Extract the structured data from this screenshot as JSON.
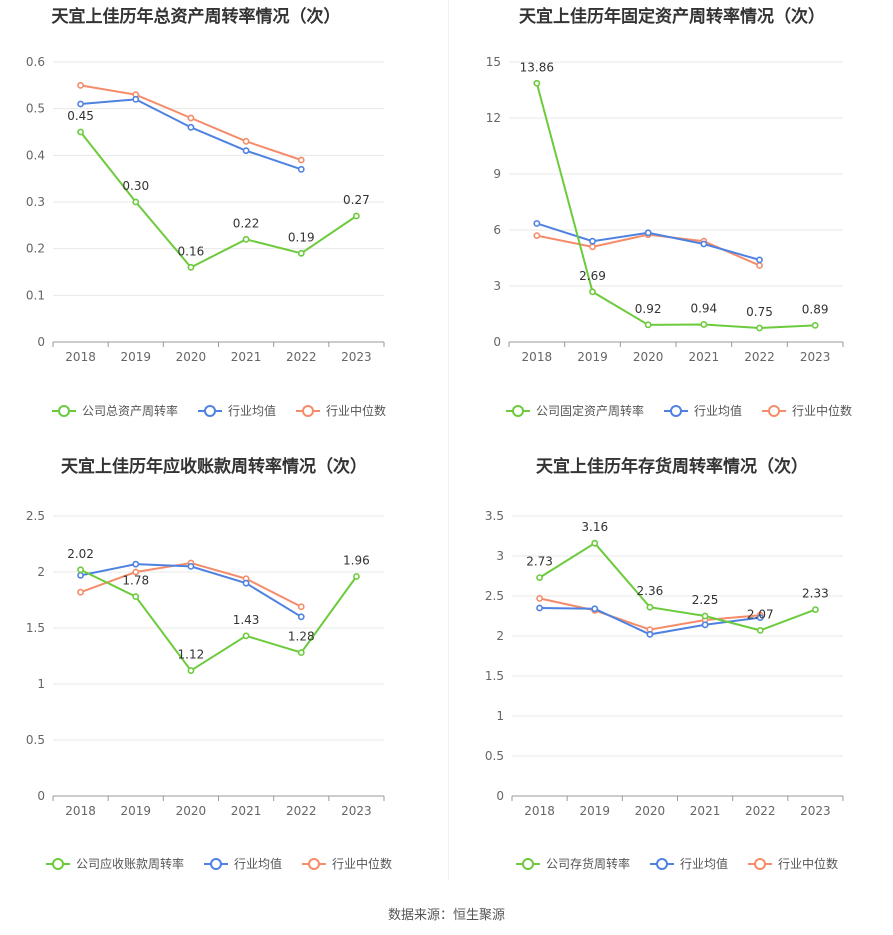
{
  "colors": {
    "company": "#6ccb3c",
    "avg": "#4f82e0",
    "median": "#f48c6a",
    "grid": "#e8e8e8",
    "axis": "#999999"
  },
  "source": "数据来源：恒生聚源",
  "chart_data": [
    {
      "type": "line",
      "title": "天宜上佳历年总资产周转率情况（次）",
      "categories": [
        "2018",
        "2019",
        "2020",
        "2021",
        "2022",
        "2023"
      ],
      "ylim": [
        0,
        0.6
      ],
      "yticks": [
        "0",
        "0.1",
        "0.2",
        "0.3",
        "0.4",
        "0.5",
        "0.6"
      ],
      "series": [
        {
          "name": "公司总资产周转率",
          "key": "company",
          "values": [
            0.45,
            0.3,
            0.16,
            0.22,
            0.19,
            0.27
          ],
          "labels": [
            "0.45",
            "0.30",
            "0.16",
            "0.22",
            "0.19",
            "0.27"
          ]
        },
        {
          "name": "行业均值",
          "key": "avg",
          "values": [
            0.51,
            0.52,
            0.46,
            0.41,
            0.37,
            null
          ]
        },
        {
          "name": "行业中位数",
          "key": "median",
          "values": [
            0.55,
            0.53,
            0.48,
            0.43,
            0.39,
            null
          ]
        }
      ]
    },
    {
      "type": "line",
      "title": "天宜上佳历年固定资产周转率情况（次）",
      "categories": [
        "2018",
        "2019",
        "2020",
        "2021",
        "2022",
        "2023"
      ],
      "ylim": [
        0,
        15
      ],
      "yticks": [
        "0",
        "3",
        "6",
        "9",
        "12",
        "15"
      ],
      "series": [
        {
          "name": "公司固定资产周转率",
          "key": "company",
          "values": [
            13.86,
            2.69,
            0.92,
            0.94,
            0.75,
            0.89
          ],
          "labels": [
            "13.86",
            "2.69",
            "0.92",
            "0.94",
            "0.75",
            "0.89"
          ]
        },
        {
          "name": "行业均值",
          "key": "avg",
          "values": [
            6.35,
            5.4,
            5.85,
            5.25,
            4.4,
            null
          ]
        },
        {
          "name": "行业中位数",
          "key": "median",
          "values": [
            5.7,
            5.1,
            5.75,
            5.4,
            4.1,
            null
          ]
        }
      ]
    },
    {
      "type": "line",
      "title": "天宜上佳历年应收账款周转率情况（次）",
      "categories": [
        "2018",
        "2019",
        "2020",
        "2021",
        "2022",
        "2023"
      ],
      "ylim": [
        0,
        2.5
      ],
      "yticks": [
        "0",
        "0.5",
        "1",
        "1.5",
        "2",
        "2.5"
      ],
      "series": [
        {
          "name": "公司应收账款周转率",
          "key": "company",
          "values": [
            2.02,
            1.78,
            1.12,
            1.43,
            1.28,
            1.96
          ],
          "labels": [
            "2.02",
            "1.78",
            "1.12",
            "1.43",
            "1.28",
            "1.96"
          ]
        },
        {
          "name": "行业均值",
          "key": "avg",
          "values": [
            1.97,
            2.07,
            2.05,
            1.9,
            1.6,
            null
          ]
        },
        {
          "name": "行业中位数",
          "key": "median",
          "values": [
            1.82,
            2.0,
            2.08,
            1.94,
            1.69,
            null
          ]
        }
      ]
    },
    {
      "type": "line",
      "title": "天宜上佳历年存货周转率情况（次）",
      "categories": [
        "2018",
        "2019",
        "2020",
        "2021",
        "2022",
        "2023"
      ],
      "ylim": [
        0,
        3.5
      ],
      "yticks": [
        "0",
        "0.5",
        "1",
        "1.5",
        "2",
        "2.5",
        "3",
        "3.5"
      ],
      "series": [
        {
          "name": "公司存货周转率",
          "key": "company",
          "values": [
            2.73,
            3.16,
            2.36,
            2.25,
            2.07,
            2.33
          ],
          "labels": [
            "2.73",
            "3.16",
            "2.36",
            "2.25",
            "2.07",
            "2.33"
          ]
        },
        {
          "name": "行业均值",
          "key": "avg",
          "values": [
            2.35,
            2.34,
            2.02,
            2.14,
            2.23,
            null
          ]
        },
        {
          "name": "行业中位数",
          "key": "median",
          "values": [
            2.47,
            2.32,
            2.08,
            2.2,
            2.26,
            null
          ]
        }
      ]
    }
  ]
}
